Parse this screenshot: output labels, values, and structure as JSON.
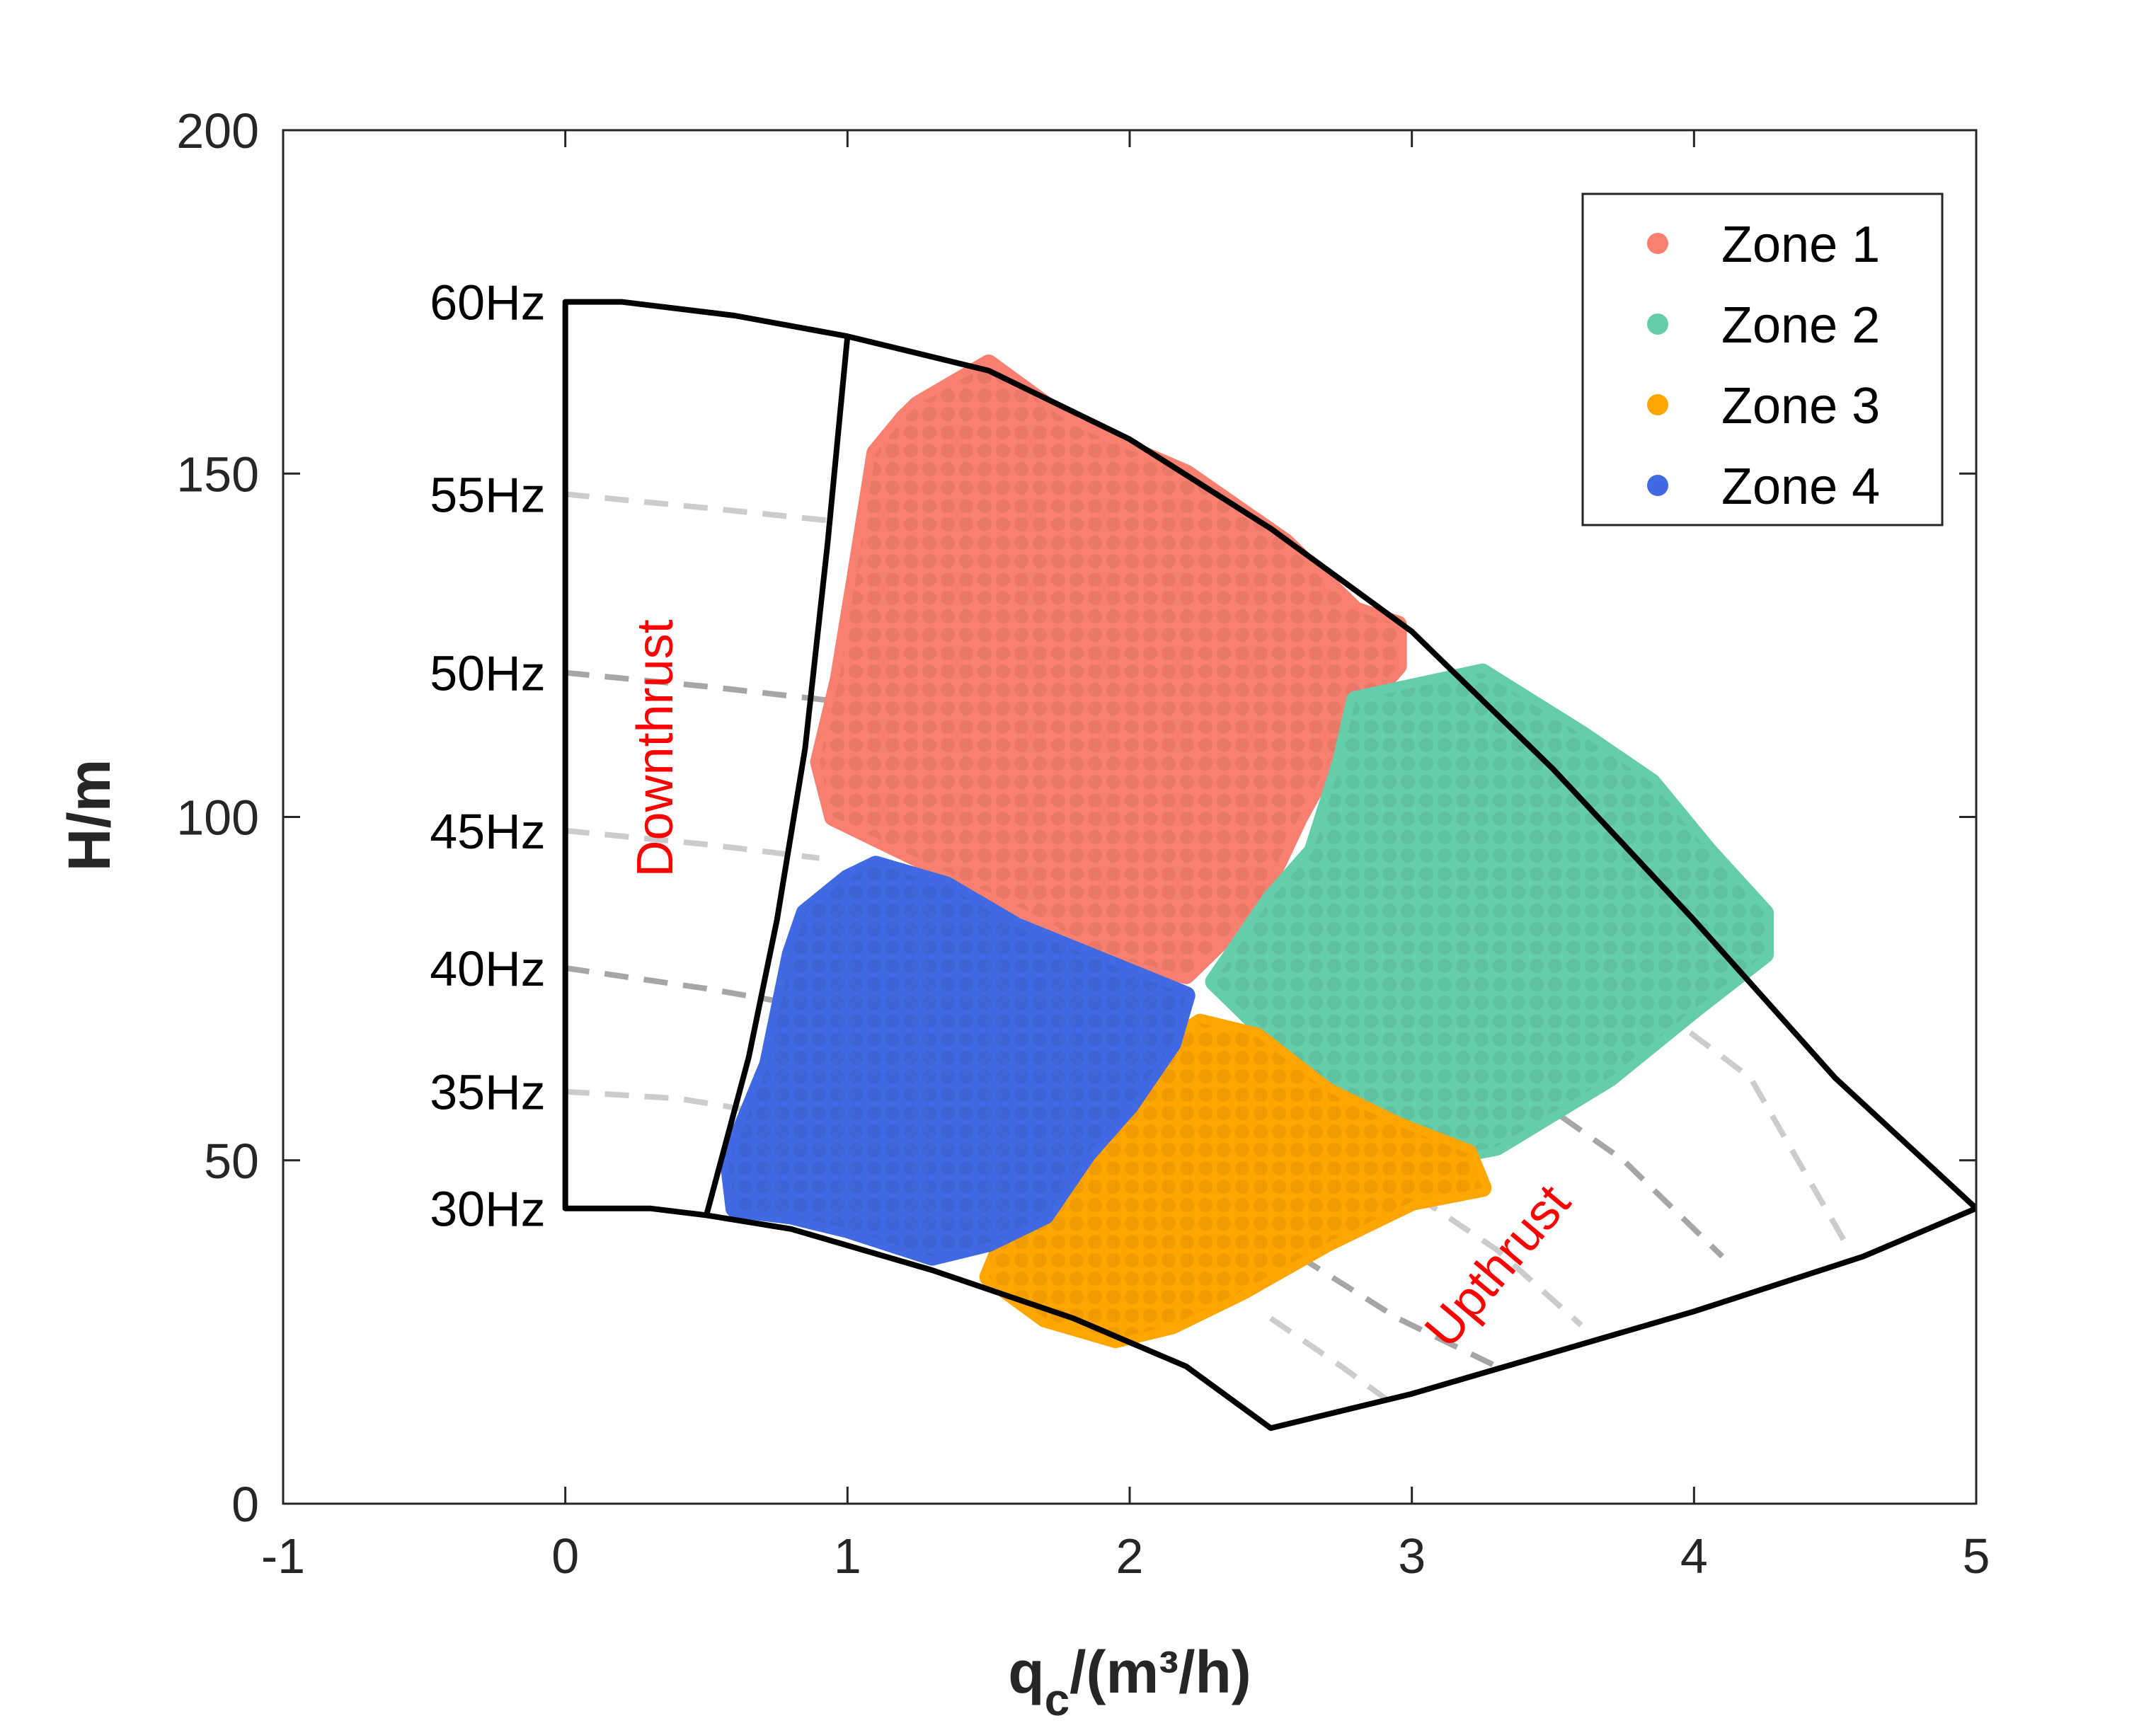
{
  "chart_data": {
    "type": "scatter",
    "xlabel_main": "q",
    "xlabel_sub": "c",
    "xlabel_rest": "/(m³/h)",
    "ylabel": "H/m",
    "xlim": [
      -1,
      5
    ],
    "ylim": [
      0,
      200
    ],
    "xticks": [
      -1,
      0,
      1,
      2,
      3,
      4,
      5
    ],
    "yticks": [
      0,
      50,
      100,
      150,
      200
    ],
    "xtick_labels": [
      "-1",
      "0",
      "1",
      "2",
      "3",
      "4",
      "5"
    ],
    "ytick_labels": [
      "0",
      "50",
      "100",
      "150",
      "200"
    ],
    "legend_position": "top-right",
    "series": [
      {
        "name": "Zone 1",
        "color": "#f88070",
        "polygon": [
          [
            1.25,
            160
          ],
          [
            1.5,
            166
          ],
          [
            1.8,
            157
          ],
          [
            2.2,
            150
          ],
          [
            2.55,
            140
          ],
          [
            2.8,
            130
          ],
          [
            2.95,
            128
          ],
          [
            2.95,
            122
          ],
          [
            2.8,
            115
          ],
          [
            2.6,
            100
          ],
          [
            2.45,
            87
          ],
          [
            2.2,
            77
          ],
          [
            1.9,
            80
          ],
          [
            1.7,
            85
          ],
          [
            1.5,
            89
          ],
          [
            1.2,
            95
          ],
          [
            0.95,
            100
          ],
          [
            0.9,
            108
          ],
          [
            0.97,
            120
          ],
          [
            1.03,
            135
          ],
          [
            1.1,
            153
          ],
          [
            1.2,
            158
          ]
        ]
      },
      {
        "name": "Zone 2",
        "color": "#66cdaa",
        "polygon": [
          [
            2.8,
            117
          ],
          [
            3.25,
            121
          ],
          [
            3.6,
            112
          ],
          [
            3.85,
            105
          ],
          [
            4.05,
            95
          ],
          [
            4.25,
            86
          ],
          [
            4.25,
            80
          ],
          [
            4.0,
            72
          ],
          [
            3.7,
            62
          ],
          [
            3.3,
            52
          ],
          [
            3.05,
            50
          ],
          [
            2.85,
            56
          ],
          [
            2.7,
            60
          ],
          [
            2.45,
            70
          ],
          [
            2.3,
            76
          ],
          [
            2.5,
            88
          ],
          [
            2.65,
            95
          ],
          [
            2.75,
            108
          ]
        ]
      },
      {
        "name": "Zone 3",
        "color": "#ffa500",
        "polygon": [
          [
            2.25,
            70
          ],
          [
            2.45,
            68
          ],
          [
            2.7,
            60
          ],
          [
            2.95,
            55
          ],
          [
            3.2,
            51
          ],
          [
            3.25,
            46
          ],
          [
            3.0,
            44
          ],
          [
            2.7,
            38
          ],
          [
            2.4,
            31
          ],
          [
            2.15,
            26
          ],
          [
            1.95,
            24
          ],
          [
            1.7,
            27
          ],
          [
            1.5,
            33
          ],
          [
            1.55,
            38
          ],
          [
            1.75,
            48
          ],
          [
            1.95,
            58
          ],
          [
            2.1,
            66
          ]
        ]
      },
      {
        "name": "Zone 4",
        "color": "#4169e1",
        "polygon": [
          [
            1.1,
            93
          ],
          [
            1.35,
            90
          ],
          [
            1.6,
            84
          ],
          [
            1.9,
            79
          ],
          [
            2.2,
            74
          ],
          [
            2.15,
            67
          ],
          [
            2.0,
            58
          ],
          [
            1.85,
            51
          ],
          [
            1.7,
            42
          ],
          [
            1.5,
            38
          ],
          [
            1.3,
            36
          ],
          [
            1.0,
            40
          ],
          [
            0.8,
            42
          ],
          [
            0.6,
            43
          ],
          [
            0.58,
            50
          ],
          [
            0.72,
            64
          ],
          [
            0.8,
            80
          ],
          [
            0.85,
            86
          ],
          [
            1.0,
            91
          ]
        ]
      }
    ],
    "boundary": {
      "outer": [
        [
          0,
          43
        ],
        [
          0,
          175
        ],
        [
          0.2,
          175
        ],
        [
          0.6,
          173
        ],
        [
          1.0,
          170
        ],
        [
          1.5,
          165
        ],
        [
          2.0,
          155
        ],
        [
          2.5,
          142
        ],
        [
          3.0,
          127
        ],
        [
          3.5,
          107
        ],
        [
          4.0,
          85
        ],
        [
          4.5,
          62
        ],
        [
          5.0,
          43
        ],
        [
          4.6,
          36
        ],
        [
          4.0,
          28
        ],
        [
          3.5,
          22
        ],
        [
          3.0,
          16
        ],
        [
          2.5,
          11
        ],
        [
          2.2,
          20
        ],
        [
          1.8,
          27
        ],
        [
          1.3,
          34
        ],
        [
          0.8,
          40
        ],
        [
          0.5,
          42
        ],
        [
          0.3,
          43
        ]
      ],
      "downthrust_line": [
        [
          1.0,
          170
        ],
        [
          0.93,
          140
        ],
        [
          0.85,
          110
        ],
        [
          0.75,
          85
        ],
        [
          0.65,
          65
        ],
        [
          0.5,
          42
        ]
      ]
    },
    "frequency_lines": [
      {
        "label": "55Hz",
        "color": "#cccccc",
        "points": [
          [
            0,
            147
          ],
          [
            0.5,
            145
          ],
          [
            0.97,
            143
          ]
        ]
      },
      {
        "label": "50Hz",
        "color": "#a6a6a6",
        "points": [
          [
            0,
            121
          ],
          [
            0.5,
            119
          ],
          [
            0.93,
            117
          ]
        ]
      },
      {
        "label": "45Hz",
        "color": "#cccccc",
        "points": [
          [
            0,
            98
          ],
          [
            0.5,
            96
          ],
          [
            0.9,
            94
          ]
        ]
      },
      {
        "label": "40Hz",
        "color": "#a6a6a6",
        "points": [
          [
            0,
            78
          ],
          [
            0.5,
            75
          ],
          [
            0.78,
            73
          ]
        ]
      },
      {
        "label": "35Hz",
        "color": "#cccccc",
        "points": [
          [
            0,
            60
          ],
          [
            0.4,
            59
          ],
          [
            0.7,
            57
          ]
        ]
      }
    ],
    "upthrust_lines": [
      {
        "color": "#cccccc",
        "points": [
          [
            2.5,
            27
          ],
          [
            2.75,
            20
          ],
          [
            2.95,
            14
          ]
        ]
      },
      {
        "color": "#a6a6a6",
        "points": [
          [
            2.6,
            36
          ],
          [
            2.95,
            27
          ],
          [
            3.3,
            20
          ]
        ]
      },
      {
        "color": "#cccccc",
        "points": [
          [
            2.9,
            48
          ],
          [
            3.3,
            37
          ],
          [
            3.6,
            26
          ]
        ]
      },
      {
        "color": "#a6a6a6",
        "points": [
          [
            3.3,
            63
          ],
          [
            3.75,
            50
          ],
          [
            4.1,
            36
          ]
        ]
      },
      {
        "color": "#cccccc",
        "points": [
          [
            3.65,
            79
          ],
          [
            4.2,
            62
          ],
          [
            4.55,
            37
          ]
        ]
      }
    ],
    "freq_labels": [
      {
        "text": "60Hz",
        "H": 175
      },
      {
        "text": "55Hz",
        "H": 147
      },
      {
        "text": "50Hz",
        "H": 121
      },
      {
        "text": "45Hz",
        "H": 98
      },
      {
        "text": "40Hz",
        "H": 78
      },
      {
        "text": "35Hz",
        "H": 60
      },
      {
        "text": "30Hz",
        "H": 43
      }
    ],
    "annotations": [
      {
        "text": "Downthrust",
        "x": 0.38,
        "y": 110,
        "rotation": -90
      },
      {
        "text": "Upthrust",
        "x": 3.35,
        "y": 33,
        "rotation": -50
      }
    ]
  }
}
